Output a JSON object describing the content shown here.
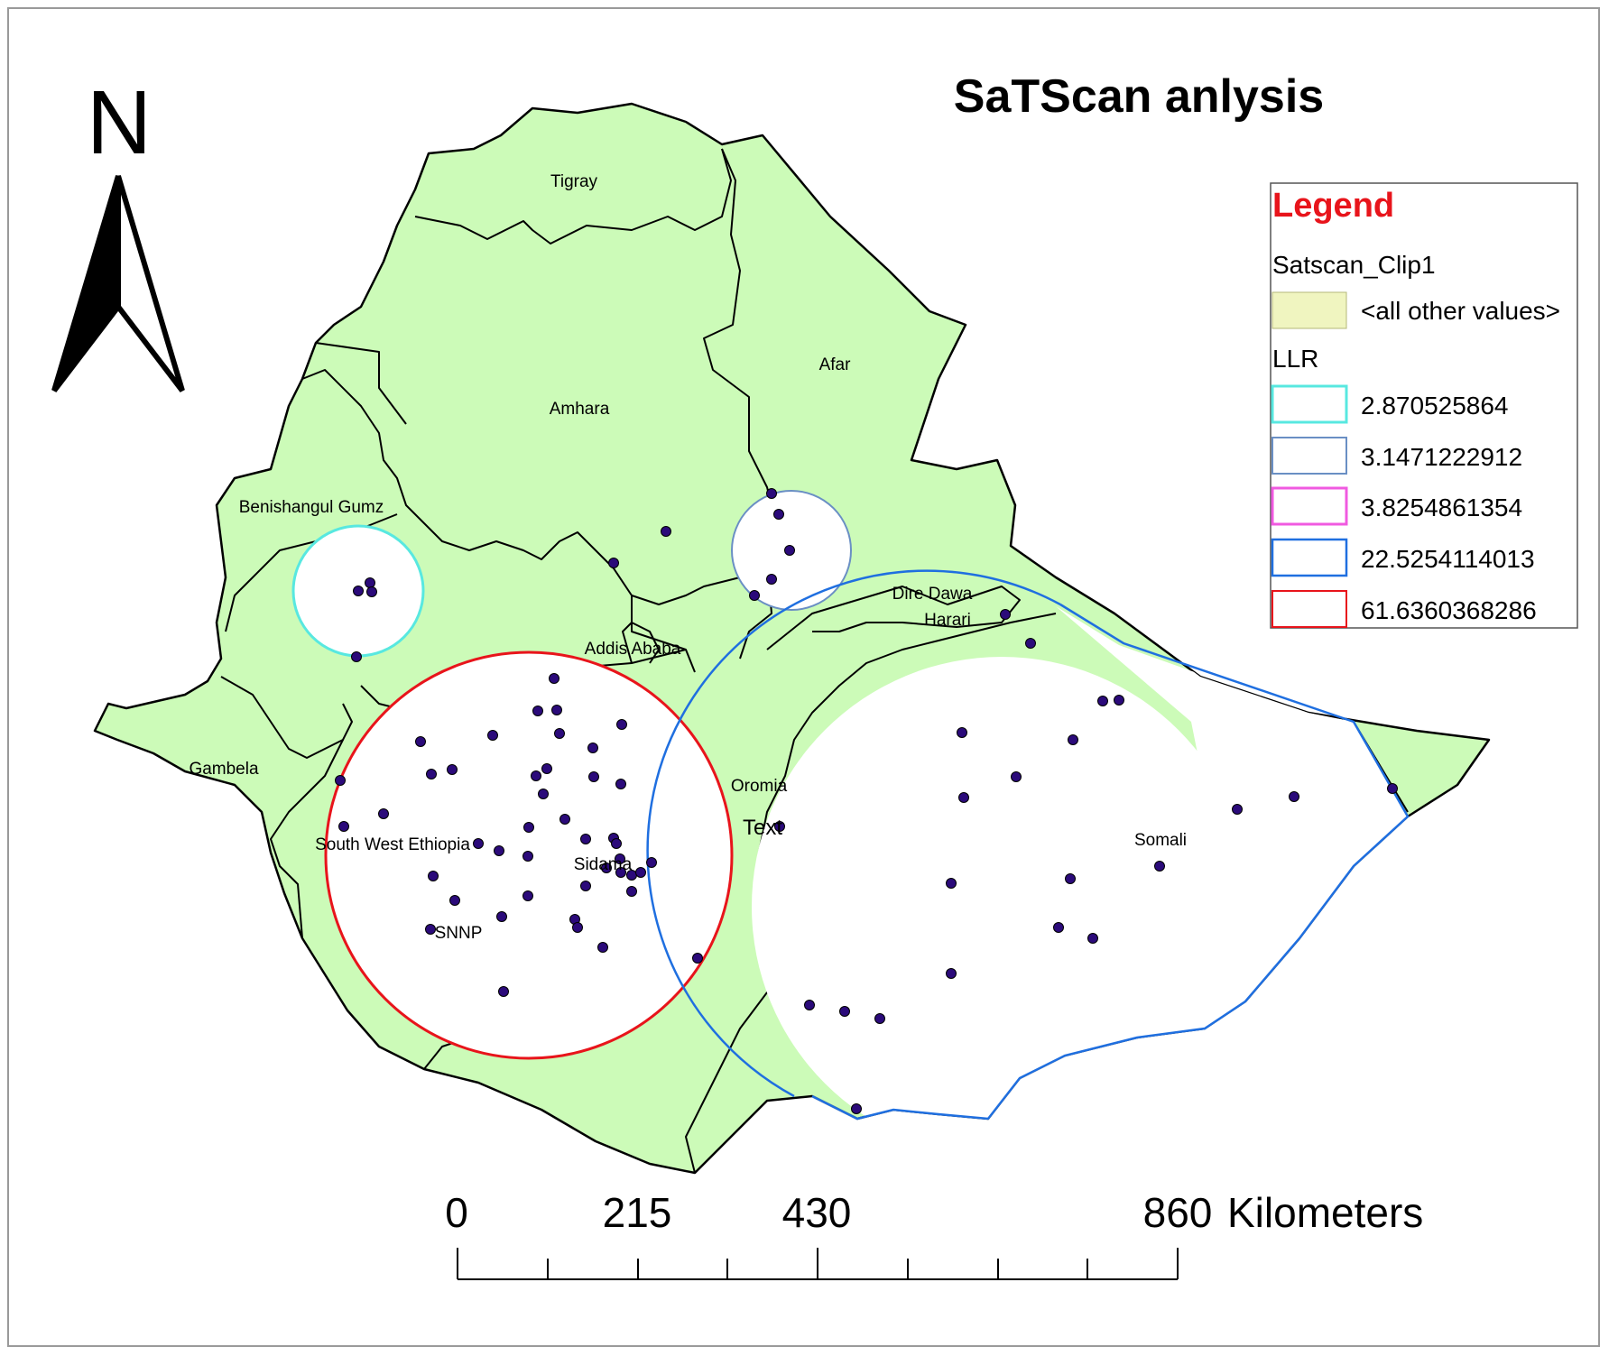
{
  "map": {
    "title": "SaTScan anlysis",
    "north_label": "N",
    "colors": {
      "land": "#ccfbb8",
      "border": "#000000",
      "point": "#2b0a7a",
      "cluster_fill": "#ffffff"
    },
    "regions": {
      "tigray": "Tigray",
      "afar": "Afar",
      "amhara": "Amhara",
      "benishangul": "Benishangul Gumz",
      "dire_dawa": "Dire Dawa",
      "harari": "Harari",
      "addis_ababa": "Addis Ababa",
      "gambela": "Gambela",
      "oromia": "Oromia",
      "text_marker": "Text",
      "somali": "Somali",
      "south_west": "South West Ethiopia",
      "sidama": "Sidama",
      "snnp": "SNNP"
    },
    "icons": {
      "north_arrow": "north-arrow-icon"
    }
  },
  "legend": {
    "title": "Legend",
    "layer_name": "Satscan_Clip1",
    "other_values_label": "<all other values>",
    "other_values_color": "#f0f5c0",
    "field_name": "LLR",
    "classes": [
      {
        "label": "2.870525864",
        "color": "#58e8e0"
      },
      {
        "label": "3.1471222912",
        "color": "#6a8fc4"
      },
      {
        "label": "3.8254861354",
        "color": "#f05ae0"
      },
      {
        "label": "22.5254114013",
        "color": "#1f6fe0"
      },
      {
        "label": "61.6360368286",
        "color": "#e8141b"
      }
    ]
  },
  "scale_bar": {
    "labels": [
      "0",
      "215",
      "430",
      "860"
    ],
    "unit": "Kilometers"
  }
}
